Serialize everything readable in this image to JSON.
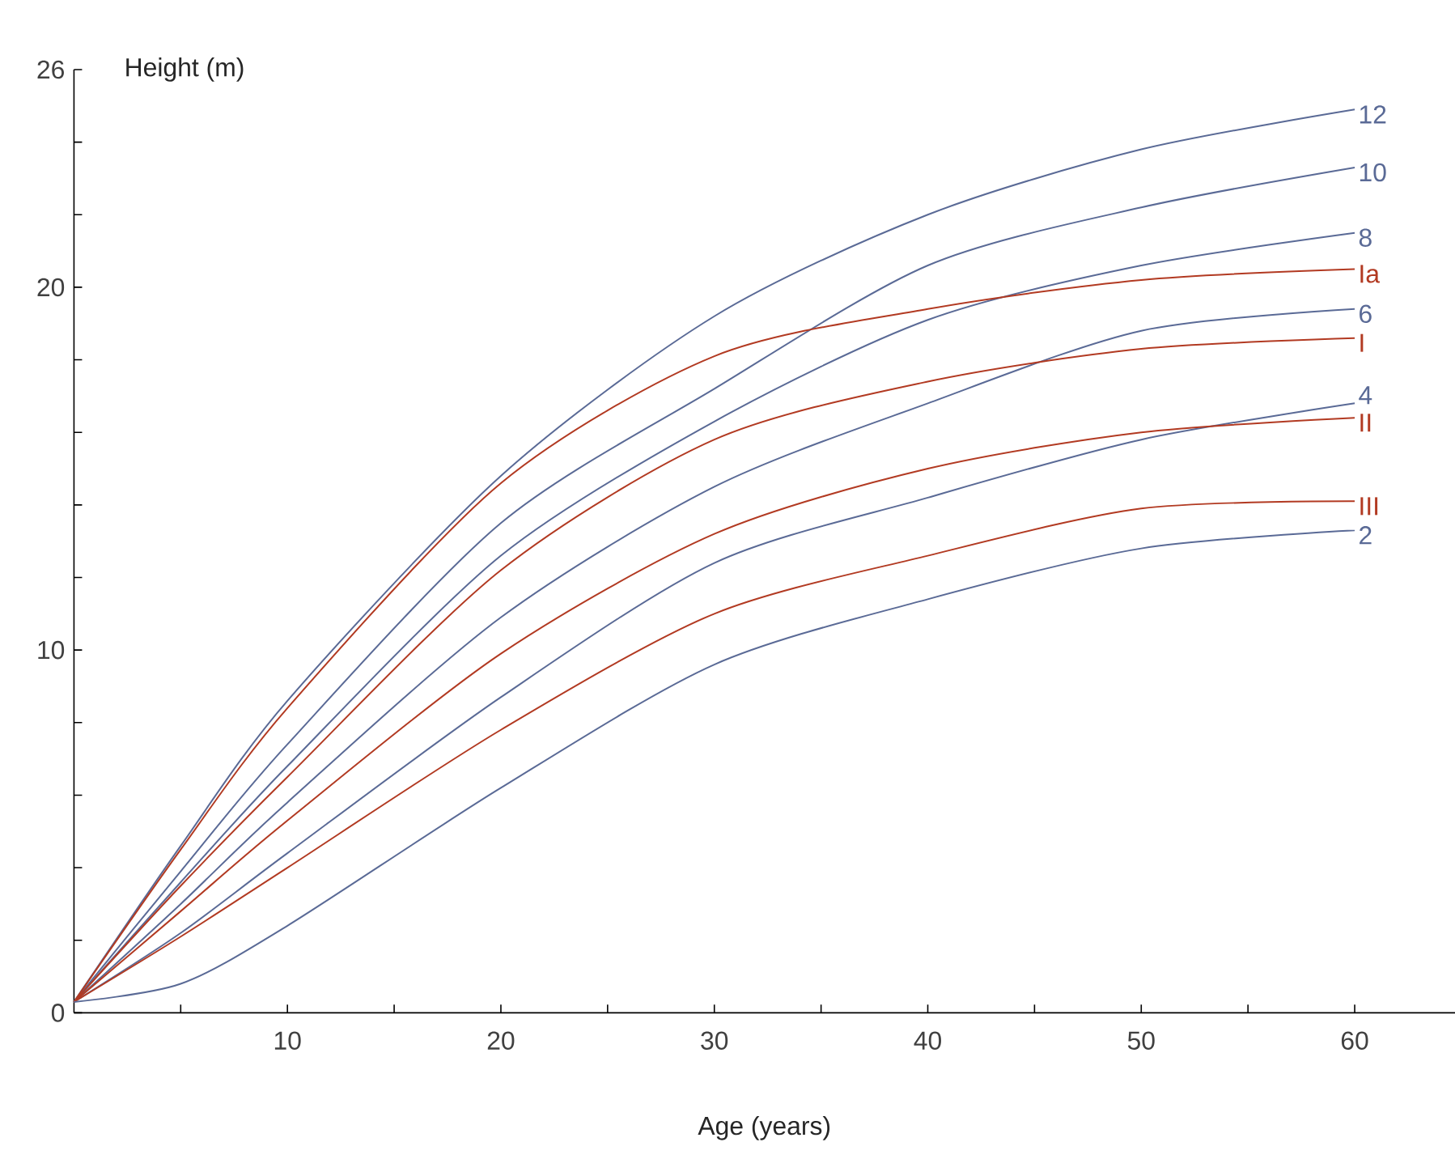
{
  "chart_data": {
    "type": "line",
    "xlabel": "Age (years)",
    "ylabel": "Height (m)",
    "xlim": [
      0,
      64.7
    ],
    "ylim": [
      0,
      26
    ],
    "xticks": [
      {
        "value": 5,
        "label": null
      },
      10,
      {
        "value": 15,
        "label": null
      },
      20,
      {
        "value": 25,
        "label": null
      },
      30,
      {
        "value": 35,
        "label": null
      },
      40,
      {
        "value": 45,
        "label": null
      },
      50,
      {
        "value": 55,
        "label": null
      },
      60
    ],
    "yticks": [
      0,
      {
        "value": 2,
        "label": null
      },
      {
        "value": 4,
        "label": null
      },
      {
        "value": 6,
        "label": null
      },
      {
        "value": 8,
        "label": null
      },
      10,
      {
        "value": 12,
        "label": null
      },
      {
        "value": 14,
        "label": null
      },
      {
        "value": 16,
        "label": null
      },
      {
        "value": 18,
        "label": null
      },
      20,
      {
        "value": 22,
        "label": null
      },
      {
        "value": 24,
        "label": null
      },
      26
    ],
    "x": [
      0,
      5,
      10,
      20,
      30,
      40,
      50,
      60
    ],
    "line_style": "solid",
    "series": [
      {
        "name": "12",
        "color": "#5a6a96",
        "values": [
          0.3,
          4.6,
          8.6,
          14.8,
          19.2,
          22.0,
          23.8,
          24.9
        ]
      },
      {
        "name": "10",
        "color": "#5a6a96",
        "values": [
          0.3,
          3.9,
          7.4,
          13.5,
          17.2,
          20.6,
          22.2,
          23.3
        ]
      },
      {
        "name": "8",
        "color": "#5a6a96",
        "values": [
          0.3,
          3.6,
          6.8,
          12.6,
          16.3,
          19.1,
          20.6,
          21.5
        ]
      },
      {
        "name": "Ia",
        "color": "#b23a22",
        "values": [
          0.3,
          4.5,
          8.4,
          14.6,
          18.1,
          19.4,
          20.2,
          20.5
        ]
      },
      {
        "name": "6",
        "color": "#5a6a96",
        "values": [
          0.3,
          3.0,
          5.8,
          10.9,
          14.5,
          16.8,
          18.8,
          19.4
        ]
      },
      {
        "name": "I",
        "color": "#b23a22",
        "values": [
          0.3,
          3.5,
          6.5,
          12.2,
          15.8,
          17.4,
          18.3,
          18.6
        ]
      },
      {
        "name": "4",
        "color": "#5a6a96",
        "values": [
          0.3,
          2.2,
          4.4,
          8.7,
          12.4,
          14.2,
          15.8,
          16.8
        ]
      },
      {
        "name": "II",
        "color": "#b23a22",
        "values": [
          0.3,
          2.8,
          5.3,
          9.9,
          13.2,
          15.0,
          16.0,
          16.4
        ]
      },
      {
        "name": "III",
        "color": "#b23a22",
        "values": [
          0.3,
          2.1,
          4.0,
          7.8,
          11.0,
          12.6,
          13.9,
          14.1
        ]
      },
      {
        "name": "2",
        "color": "#5a6a96",
        "values": [
          0.3,
          0.8,
          2.4,
          6.2,
          9.6,
          11.4,
          12.8,
          13.3
        ]
      }
    ]
  }
}
